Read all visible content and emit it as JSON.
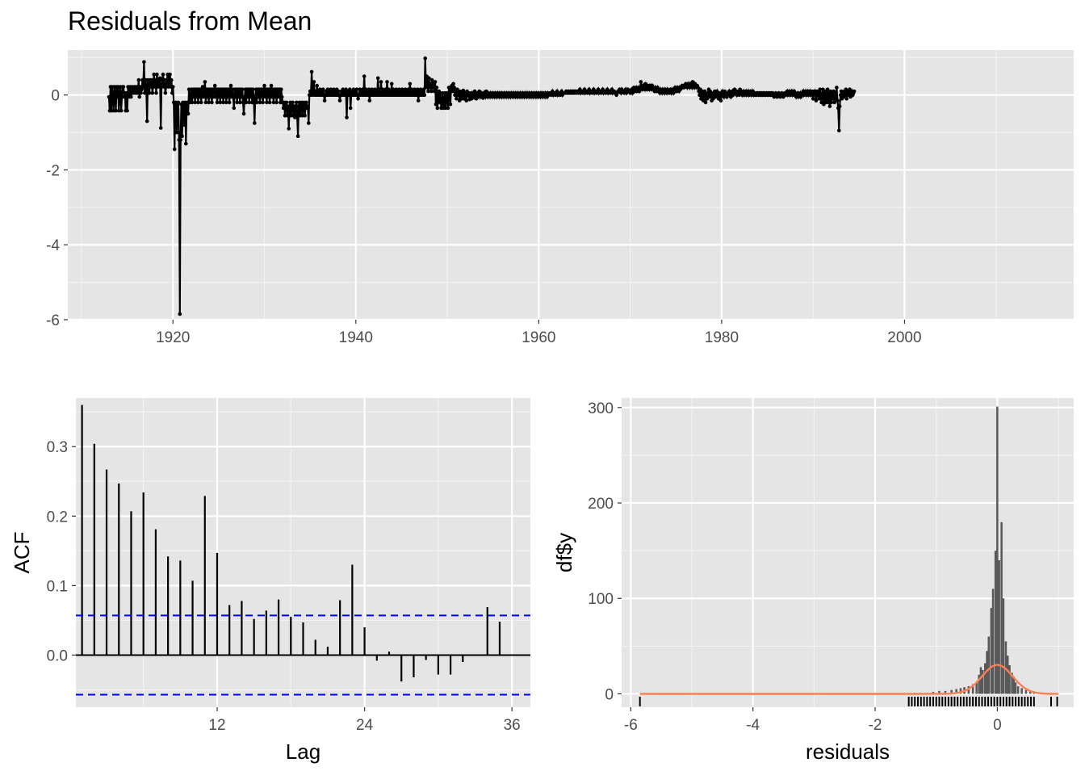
{
  "title": "Residuals from Mean",
  "colors": {
    "panel": "#e5e5e5",
    "grid_major": "#ffffff",
    "grid_minor": "#f2f2f2",
    "line": "#000000",
    "ci": "#0000ff",
    "hist": "#595959",
    "density": "#ff7f50"
  },
  "chart_data": [
    {
      "type": "line",
      "name": "time-series",
      "title": "Residuals from Mean",
      "xlabel": "",
      "ylabel": "",
      "xlim": [
        1908.5,
        2018.5
      ],
      "ylim": [
        -6.0,
        1.2
      ],
      "xticks": [
        1920,
        1940,
        1960,
        1980,
        2000
      ],
      "yticks": [
        0,
        -2,
        -4,
        -6
      ],
      "points": true,
      "x_start": 1913.0,
      "x_step": 0.0833333,
      "values": [
        -0.05,
        -0.42,
        0.22,
        -0.42,
        0.22,
        -0.05,
        -0.42,
        0.22,
        0.05,
        -0.42,
        0.22,
        -0.05,
        0.22,
        -0.42,
        0.05,
        0.22,
        -0.42,
        -0.05,
        0.22,
        0.22,
        -0.05,
        0.05,
        -0.42,
        0.05,
        -0.42,
        0.22,
        0.05,
        -0.05,
        0.22,
        -0.05,
        0.05,
        0.22,
        0.05,
        0.15,
        0.22,
        0.05,
        0.22,
        0.05,
        0.15,
        0.4,
        -0.05,
        0.22,
        0.05,
        0.15,
        0.4,
        0.22,
        0.88,
        0.05,
        0.4,
        0.22,
        -0.7,
        0.4,
        0.22,
        0.05,
        0.4,
        0.22,
        0.4,
        0.05,
        0.22,
        0.55,
        0.22,
        0.4,
        0.05,
        0.55,
        0.22,
        0.4,
        0.22,
        0.45,
        -0.88,
        0.22,
        0.4,
        0.55,
        0.22,
        0.4,
        0.05,
        0.22,
        0.4,
        0.55,
        0.22,
        0.4,
        0.55,
        0.22,
        0.4,
        0.05,
        0.22,
        -0.2,
        -1.45,
        -0.25,
        -0.2,
        -1.0,
        -0.25,
        -0.2,
        -1.2,
        -5.85,
        -1.2,
        -0.25,
        -1.1,
        -0.2,
        -0.25,
        -0.8,
        -0.2,
        -1.3,
        -0.25,
        -0.2,
        -0.5,
        0.15,
        -0.2,
        -0.05,
        0.15,
        -0.2,
        0.15,
        -0.05,
        0.15,
        -0.2,
        0.15,
        -0.05,
        0.15,
        -0.2,
        0.15,
        -0.05,
        0.15,
        -0.2,
        0.15,
        0.22,
        -0.05,
        0.15,
        0.35,
        -0.2,
        0.15,
        -0.05,
        0.15,
        -0.2,
        0.15,
        -0.05,
        0.15,
        -0.2,
        0.15,
        -0.05,
        0.15,
        0.25,
        -0.05,
        0.15,
        -0.2,
        0.15,
        -0.05,
        0.15,
        -0.2,
        0.15,
        -0.05,
        0.15,
        -0.2,
        0.15,
        -0.05,
        0.15,
        -0.2,
        0.15,
        -0.05,
        0.15,
        -0.2,
        0.15,
        0.25,
        -0.05,
        0.15,
        -0.05,
        -0.35,
        0.15,
        -0.05,
        0.15,
        -0.2,
        0.15,
        -0.05,
        0.15,
        -0.2,
        0.15,
        -0.05,
        0.15,
        -0.2,
        -0.5,
        -0.05,
        0.15,
        -0.2,
        0.15,
        -0.05,
        0.15,
        -0.2,
        0.15,
        -0.05,
        0.15,
        -0.2,
        0.15,
        -0.05,
        -0.75,
        -0.05,
        0.15,
        -0.2,
        0.15,
        -0.05,
        0.15,
        -0.2,
        0.15,
        -0.05,
        0.15,
        -0.2,
        0.15,
        0.25,
        -0.05,
        0.15,
        -0.2,
        0.15,
        -0.05,
        0.15,
        -0.2,
        0.15,
        0.25,
        -0.05,
        0.15,
        -0.2,
        0.15,
        -0.05,
        0.15,
        -0.2,
        0.15,
        0.15,
        -0.05,
        0.15,
        -0.2,
        0.15,
        -0.05,
        -0.2,
        -0.35,
        -0.2,
        -0.55,
        -0.3,
        -0.2,
        -0.55,
        -0.3,
        -0.9,
        -0.3,
        -0.2,
        -0.55,
        -0.3,
        -0.2,
        -0.55,
        -0.3,
        -0.6,
        -0.3,
        -0.2,
        -0.55,
        -1.1,
        -0.3,
        -0.2,
        -0.55,
        -0.3,
        -0.2,
        -0.55,
        -0.3,
        -0.2,
        -0.55,
        -0.3,
        -0.2,
        -0.35,
        -0.3,
        -0.75,
        0.0,
        0.1,
        0.0,
        0.62,
        0.0,
        0.1,
        0.35,
        0.0,
        0.1,
        0.0,
        0.25,
        0.0,
        0.1,
        0.0,
        0.15,
        0.0,
        0.1,
        0.0,
        0.15,
        0.0,
        -0.15,
        0.0,
        0.1,
        0.0,
        0.15,
        0.0,
        0.1,
        0.0,
        0.15,
        0.0,
        0.1,
        0.0,
        0.15,
        0.0,
        0.1,
        0.0,
        0.15,
        0.0,
        0.1,
        0.0,
        -0.15,
        0.0,
        0.1,
        0.0,
        0.15,
        0.0,
        0.1,
        0.0,
        0.15,
        -0.6,
        0.0,
        0.1,
        0.0,
        0.15,
        -0.35,
        0.0,
        0.1,
        0.0,
        0.15,
        0.0,
        0.1,
        0.0,
        0.15,
        0.0,
        -0.1,
        0.0,
        0.15,
        0.0,
        0.1,
        0.0,
        0.15,
        0.0,
        0.5,
        0.0,
        0.15,
        0.0,
        0.1,
        0.0,
        0.15,
        -0.15,
        0.1,
        0.0,
        0.15,
        0.0,
        0.1,
        0.0,
        0.15,
        0.0,
        0.1,
        0.0,
        0.45,
        0.0,
        0.15,
        0.0,
        0.35,
        0.0,
        0.15,
        0.0,
        0.1,
        0.0,
        0.15,
        0.0,
        0.35,
        0.0,
        0.15,
        0.0,
        0.1,
        0.0,
        0.3,
        0.0,
        0.15,
        0.0,
        0.1,
        0.0,
        0.15,
        0.0,
        0.1,
        0.0,
        0.15,
        0.0,
        0.1,
        0.0,
        0.15,
        0.0,
        0.1,
        0.0,
        0.15,
        0.0,
        0.1,
        0.0,
        0.15,
        0.0,
        0.3,
        0.0,
        0.15,
        0.0,
        0.1,
        0.0,
        0.15,
        0.0,
        0.1,
        0.0,
        0.15,
        -0.15,
        0.1,
        0.0,
        0.15,
        0.0,
        0.1,
        0.0,
        0.15,
        0.0,
        0.98,
        0.2,
        0.5,
        0.3,
        0.1,
        0.45,
        0.2,
        0.3,
        0.1,
        0.4,
        0.2,
        0.3,
        0.1,
        0.35,
        -0.25,
        0.2,
        -0.35,
        -0.1,
        0.1,
        -0.2,
        0.05,
        -0.35,
        -0.2,
        0.05,
        -0.35,
        -0.2,
        0.05,
        -0.35,
        0.05,
        0.0,
        -0.35,
        0.2,
        0.1,
        -0.25,
        0.2,
        0.25,
        0.1,
        0.3,
        0.2,
        0.0,
        0.1,
        -0.1,
        0.15,
        0.0,
        0.05,
        -0.15,
        0.1,
        0.0,
        -0.1,
        0.05,
        0.12,
        -0.1,
        0.0,
        0.05,
        -0.15,
        0.1,
        0.0,
        0.05,
        -0.12,
        0.05,
        0.0,
        -0.1,
        0.05,
        0.0,
        -0.05,
        0.1,
        0.0,
        -0.1,
        0.05,
        0.0,
        -0.05,
        0.1,
        0.0,
        -0.05,
        0.05,
        0.0,
        -0.08,
        0.05,
        0.0,
        -0.05,
        0.1,
        0.0,
        -0.05,
        0.05,
        0.0,
        -0.05,
        0.05,
        0.0,
        -0.05,
        0.05,
        0.0,
        -0.05,
        0.05,
        0.0,
        -0.05,
        0.05,
        0.0,
        -0.05,
        0.05,
        0.0,
        -0.05,
        0.05,
        0.0,
        -0.05,
        0.05,
        0.0,
        -0.05,
        0.05,
        0.0,
        -0.05,
        0.05,
        0.0,
        -0.05,
        0.05,
        0.0,
        -0.05,
        0.05,
        0.0,
        -0.05,
        0.05,
        0.0,
        -0.05,
        0.05,
        0.0,
        -0.05,
        0.05,
        0.0,
        -0.05,
        0.05,
        0.0,
        -0.05,
        0.05,
        0.0,
        -0.05,
        0.05,
        0.0,
        -0.05,
        0.05,
        0.0,
        -0.05,
        0.05,
        0.0,
        -0.05,
        0.05,
        0.0,
        -0.05,
        0.05,
        0.0,
        -0.05,
        0.05,
        0.0,
        -0.05,
        0.05,
        0.0,
        -0.05,
        0.05,
        0.0,
        -0.05,
        0.05,
        0.0,
        -0.05,
        0.05,
        0.0,
        0.05,
        0.05,
        0.0,
        0.05,
        0.1,
        0.0,
        0.05,
        0.05,
        0.0,
        0.05,
        0.1,
        0.0,
        0.05,
        0.05,
        0.0,
        0.05,
        0.1,
        0.0,
        0.05,
        0.05,
        0.05,
        0.05,
        0.1,
        0.05,
        0.05,
        0.1,
        0.05,
        0.05,
        0.1,
        0.05,
        0.05,
        0.1,
        0.05,
        0.1,
        0.1,
        0.05,
        0.1,
        0.1,
        0.05,
        0.1,
        0.15,
        0.05,
        0.1,
        0.1,
        0.05,
        0.1,
        0.15,
        0.05,
        0.1,
        0.1,
        0.05,
        0.1,
        0.15,
        0.05,
        0.1,
        0.1,
        0.05,
        0.1,
        0.15,
        0.05,
        0.1,
        0.1,
        0.05,
        0.1,
        0.15,
        0.05,
        0.1,
        0.1,
        0.05,
        0.1,
        0.15,
        0.05,
        0.1,
        0.1,
        0.05,
        0.1,
        0.15,
        0.05,
        0.1,
        0.1,
        0.05,
        0.1,
        0.15,
        0.05,
        0.1,
        0.1,
        0.05,
        0.05,
        0.0,
        0.05,
        0.1,
        0.1,
        0.15,
        0.1,
        0.05,
        0.15,
        0.1,
        0.1,
        0.05,
        0.1,
        0.15,
        0.05,
        0.1,
        0.15,
        0.1,
        0.1,
        0.05,
        0.1,
        0.15,
        0.05,
        0.1,
        0.2,
        0.1,
        0.15,
        0.2,
        0.1,
        0.15,
        0.2,
        0.1,
        0.15,
        0.35,
        0.2,
        0.15,
        0.25,
        0.2,
        0.15,
        0.3,
        0.2,
        0.15,
        0.25,
        0.2,
        0.15,
        0.25,
        0.2,
        0.15,
        0.25,
        0.2,
        0.15,
        0.1,
        0.2,
        0.15,
        0.1,
        0.2,
        0.15,
        0.1,
        0.05,
        0.15,
        0.1,
        0.05,
        0.15,
        0.1,
        0.05,
        0.15,
        0.1,
        0.05,
        0.15,
        0.1,
        0.05,
        0.1,
        0.15,
        0.05,
        0.1,
        0.15,
        0.05,
        0.1,
        0.2,
        0.15,
        0.1,
        0.2,
        0.15,
        0.1,
        0.2,
        0.15,
        0.2,
        0.25,
        0.2,
        0.25,
        0.2,
        0.25,
        0.3,
        0.25,
        0.2,
        0.3,
        0.25,
        0.2,
        0.3,
        0.25,
        0.2,
        0.35,
        0.25,
        0.2,
        0.3,
        0.25,
        0.2,
        0.25,
        0.2,
        0.1,
        0.0,
        0.15,
        -0.1,
        0.0,
        0.1,
        -0.15,
        0.05,
        0.1,
        -0.2,
        0.0,
        -0.1,
        0.05,
        0.15,
        -0.05,
        0.1,
        0.0,
        -0.15,
        0.05,
        -0.1,
        0.0,
        0.1,
        -0.05,
        0.05,
        0.1,
        0.0,
        -0.1,
        0.05,
        0.0,
        -0.15,
        0.05,
        0.1,
        0.0,
        -0.05,
        0.1,
        0.0,
        0.05,
        -0.05,
        0.0,
        0.05,
        0.1,
        0.0,
        -0.05,
        0.05,
        0.1,
        0.0,
        0.05,
        0.15,
        0.05,
        0.1,
        0.0,
        0.05,
        0.1,
        0.0,
        0.15,
        0.05,
        0.1,
        0.0,
        0.05,
        0.1,
        0.0,
        0.05,
        0.1,
        0.0,
        0.05,
        0.1,
        0.0,
        0.05,
        0.1,
        0.0,
        0.05,
        0.1,
        0.0,
        0.05,
        0.0,
        0.05,
        0.0,
        0.05,
        0.0,
        0.05,
        0.0,
        0.05,
        0.0,
        0.05,
        0.0,
        0.05,
        0.0,
        0.05,
        0.0,
        0.05,
        0.0,
        0.05,
        0.0,
        0.05,
        0.0,
        0.05,
        0.0,
        0.05,
        0.0,
        -0.05,
        0.0,
        0.05,
        0.0,
        -0.05,
        0.0,
        0.05,
        0.0,
        -0.05,
        0.0,
        0.05,
        0.0,
        -0.05,
        0.0,
        0.05,
        0.0,
        0.05,
        0.1,
        0.0,
        0.05,
        0.1,
        0.0,
        0.05,
        0.1,
        0.0,
        0.05,
        0.1,
        0.0,
        0.05,
        -0.05,
        0.0,
        0.05,
        -0.05,
        0.0,
        0.05,
        -0.05,
        0.0,
        0.05,
        0.1,
        0.0,
        0.05,
        0.1,
        0.0,
        0.05,
        0.1,
        0.0,
        0.05,
        0.1,
        0.0,
        0.05,
        0.1,
        -0.1,
        0.05,
        0.1,
        0.0,
        -0.15,
        0.1,
        0.0,
        0.05,
        -0.1,
        0.15,
        0.0,
        -0.2,
        0.05,
        0.15,
        -0.25,
        0.0,
        0.1,
        -0.2,
        -0.1,
        0.15,
        -0.2,
        0.05,
        -0.3,
        0.1,
        -0.2,
        0.05,
        -0.1,
        0.1,
        -0.2,
        0.05,
        -0.1,
        0.2,
        -0.15,
        -0.35,
        -0.95,
        -0.3,
        0.0,
        0.1,
        -0.1,
        0.05,
        -0.05,
        0.1,
        0.0,
        0.15,
        -0.1,
        0.05,
        0.1,
        0.0,
        0.15,
        -0.05,
        0.05,
        0.1,
        0.0,
        0.05,
        0.1
      ]
    },
    {
      "type": "bar",
      "name": "acf",
      "xlabel": "Lag",
      "ylabel": "ACF",
      "xlim": [
        0.5,
        37.5
      ],
      "ylim": [
        -0.075,
        0.37
      ],
      "xticks": [
        12,
        24,
        36
      ],
      "yticks": [
        "0.0",
        "0.1",
        "0.2",
        "0.3"
      ],
      "ci": [
        0.057,
        -0.057
      ],
      "lags": [
        1,
        2,
        3,
        4,
        5,
        6,
        7,
        8,
        9,
        10,
        11,
        12,
        13,
        14,
        15,
        16,
        17,
        18,
        19,
        20,
        21,
        22,
        23,
        24,
        25,
        26,
        27,
        28,
        29,
        30,
        31,
        32,
        33,
        34,
        35,
        36
      ],
      "values": [
        0.36,
        0.304,
        0.267,
        0.247,
        0.207,
        0.234,
        0.181,
        0.142,
        0.136,
        0.107,
        0.229,
        0.147,
        0.072,
        0.078,
        0.052,
        0.064,
        0.08,
        0.055,
        0.047,
        0.022,
        0.012,
        0.079,
        0.13,
        0.04,
        -0.008,
        0.005,
        -0.038,
        -0.032,
        -0.007,
        -0.028,
        -0.028,
        -0.01,
        0.0,
        0.069,
        0.048,
        0.0
      ]
    },
    {
      "type": "bar",
      "name": "histogram",
      "xlabel": "residuals",
      "ylabel": "df$y",
      "xlim": [
        -6.15,
        1.25
      ],
      "ylim": [
        -14,
        310
      ],
      "xticks": [
        -6,
        -4,
        -2,
        0
      ],
      "yticks": [
        0,
        100,
        200,
        300
      ],
      "bin_width": 0.0334,
      "bin_centers": [
        -1.45,
        -1.35,
        -1.25,
        -1.15,
        -1.05,
        -0.95,
        -0.85,
        -0.75,
        -0.67,
        -0.6,
        -0.54,
        -0.47,
        -0.4,
        -0.34,
        -0.3,
        -0.27,
        -0.24,
        -0.2,
        -0.17,
        -0.14,
        -0.1,
        -0.07,
        -0.03,
        0.0,
        0.03,
        0.07,
        0.1,
        0.14,
        0.17,
        0.2,
        0.24,
        0.27,
        0.3,
        0.34,
        0.4,
        0.47,
        0.54,
        0.6,
        0.7,
        0.8,
        0.92
      ],
      "counts": [
        1,
        1,
        1,
        1,
        2,
        3,
        3,
        4,
        5,
        6,
        7,
        8,
        10,
        12,
        20,
        28,
        25,
        32,
        45,
        60,
        90,
        110,
        150,
        301,
        140,
        180,
        100,
        55,
        40,
        30,
        22,
        18,
        12,
        8,
        6,
        4,
        3,
        2,
        1,
        1,
        1
      ],
      "density": {
        "mean": 0.0,
        "sd": 0.25,
        "scale": 19.0
      },
      "rug": [
        -5.85,
        -1.45,
        -1.4,
        -1.35,
        -1.3,
        -1.25,
        -1.2,
        -1.15,
        -1.1,
        -1.05,
        -1.0,
        -0.95,
        -0.9,
        -0.85,
        -0.8,
        -0.75,
        -0.7,
        -0.65,
        -0.6,
        -0.55,
        -0.5,
        -0.45,
        -0.4,
        -0.35,
        -0.3,
        -0.25,
        -0.2,
        -0.15,
        -0.1,
        -0.05,
        0.0,
        0.05,
        0.1,
        0.15,
        0.2,
        0.25,
        0.3,
        0.35,
        0.4,
        0.45,
        0.5,
        0.55,
        0.6,
        0.88,
        0.98
      ]
    }
  ]
}
